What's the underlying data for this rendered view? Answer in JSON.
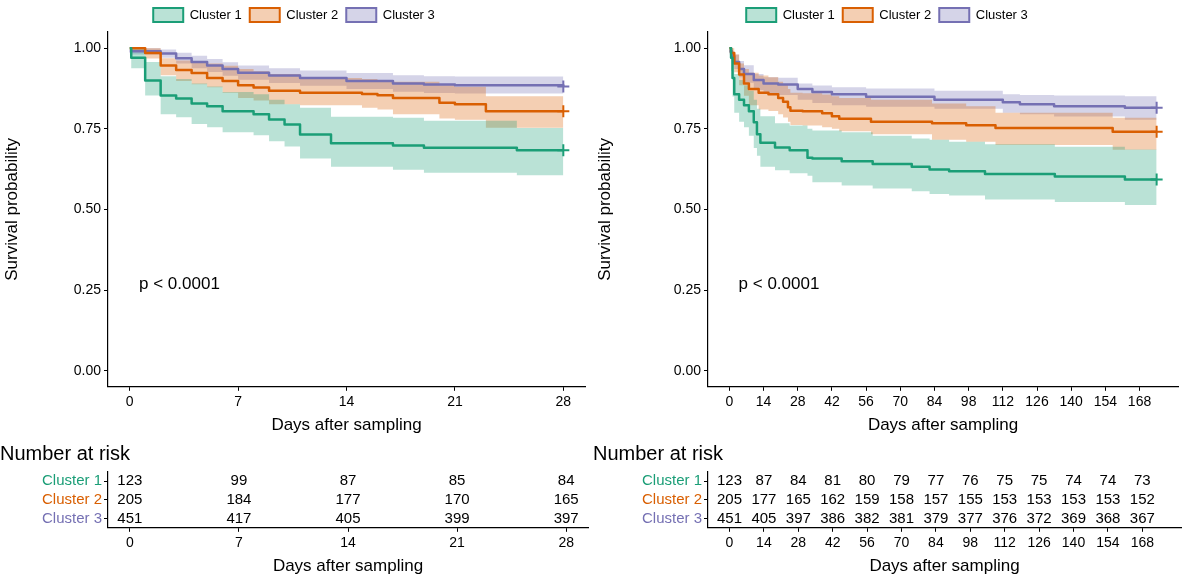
{
  "chart_data": [
    {
      "type": "step",
      "xlabel": "Days after sampling",
      "ylabel": "Survival probability",
      "xlim": [
        -1.4,
        29.4
      ],
      "xticks": [
        0,
        7,
        14,
        21,
        28
      ],
      "ylim": [
        -0.05,
        1.05
      ],
      "yticks": [
        {
          "value": 0,
          "label": "0.00"
        },
        {
          "value": 0.25,
          "label": "0.25"
        },
        {
          "value": 0.5,
          "label": "0.50"
        },
        {
          "value": 0.75,
          "label": "0.75"
        },
        {
          "value": 1,
          "label": "1.00"
        }
      ],
      "legend": "top",
      "annotations": [
        "p < 0.0001"
      ],
      "series": [
        {
          "name": "Cluster 1",
          "color": "#1b9e77",
          "x": [
            0,
            0.1,
            1,
            2,
            3,
            4,
            5,
            6,
            8,
            9,
            10,
            11,
            13,
            17,
            19,
            25,
            28
          ],
          "values": [
            1,
            0.97,
            0.9,
            0.853,
            0.844,
            0.828,
            0.82,
            0.804,
            0.795,
            0.779,
            0.763,
            0.732,
            0.705,
            0.698,
            0.691,
            0.683,
            0.683
          ],
          "lower": [
            1,
            0.938,
            0.853,
            0.795,
            0.786,
            0.765,
            0.755,
            0.739,
            0.73,
            0.711,
            0.695,
            0.658,
            0.632,
            0.623,
            0.614,
            0.606,
            0.606
          ],
          "upper": [
            1,
            1,
            0.957,
            0.913,
            0.904,
            0.89,
            0.881,
            0.864,
            0.857,
            0.84,
            0.826,
            0.815,
            0.787,
            0.784,
            0.775,
            0.752,
            0.752
          ]
        },
        {
          "name": "Cluster 2",
          "color": "#d95f02",
          "x": [
            0,
            1,
            2,
            3,
            4,
            5,
            6,
            7,
            8,
            9,
            11,
            15,
            16,
            17,
            20,
            21,
            23,
            28
          ],
          "values": [
            1,
            0.985,
            0.946,
            0.932,
            0.923,
            0.907,
            0.898,
            0.885,
            0.878,
            0.868,
            0.862,
            0.858,
            0.854,
            0.845,
            0.831,
            0.826,
            0.804,
            0.804
          ],
          "lower": [
            1,
            0.968,
            0.916,
            0.898,
            0.888,
            0.879,
            0.862,
            0.845,
            0.838,
            0.826,
            0.823,
            0.815,
            0.81,
            0.795,
            0.782,
            0.778,
            0.753,
            0.753
          ],
          "upper": [
            1,
            1,
            0.969,
            0.962,
            0.957,
            0.952,
            0.945,
            0.935,
            0.928,
            0.92,
            0.907,
            0.904,
            0.9,
            0.896,
            0.885,
            0.88,
            0.851,
            0.851
          ]
        },
        {
          "name": "Cluster 3",
          "color": "#7570b3",
          "x": [
            0,
            2,
            3,
            4,
            5,
            6,
            7,
            9,
            11,
            14,
            17,
            19,
            21,
            28
          ],
          "values": [
            0.99,
            0.983,
            0.969,
            0.957,
            0.946,
            0.935,
            0.924,
            0.915,
            0.907,
            0.898,
            0.89,
            0.887,
            0.885,
            0.881
          ],
          "lower": [
            0.98,
            0.97,
            0.952,
            0.938,
            0.926,
            0.914,
            0.902,
            0.892,
            0.883,
            0.873,
            0.865,
            0.861,
            0.859,
            0.855
          ],
          "upper": [
            1,
            0.996,
            0.986,
            0.976,
            0.966,
            0.956,
            0.946,
            0.938,
            0.931,
            0.923,
            0.916,
            0.913,
            0.912,
            0.909
          ]
        },
        {
          "type": "scatter",
          "marker": "cross",
          "color": "#1b9e77",
          "x": [
            28
          ],
          "values": [
            0.683
          ]
        },
        {
          "type": "scatter",
          "marker": "cross",
          "color": "#d95f02",
          "x": [
            28
          ],
          "values": [
            0.804
          ]
        },
        {
          "type": "scatter",
          "marker": "cross",
          "color": "#7570b3",
          "x": [
            28
          ],
          "values": [
            0.881
          ]
        }
      ]
    },
    {
      "type": "step",
      "xlabel": "Days after sampling",
      "ylabel": "Survival probability",
      "xlim": [
        -8.75,
        183.75
      ],
      "xticks": [
        0,
        14,
        28,
        42,
        56,
        70,
        84,
        98,
        112,
        126,
        140,
        154,
        168
      ],
      "ylim": [
        -0.05,
        1.05
      ],
      "yticks": [
        {
          "value": 0,
          "label": "0.00"
        },
        {
          "value": 0.25,
          "label": "0.25"
        },
        {
          "value": 0.5,
          "label": "0.50"
        },
        {
          "value": 0.75,
          "label": "0.75"
        },
        {
          "value": 1,
          "label": "1.00"
        }
      ],
      "legend": "top",
      "annotations": [
        "p < 0.0001"
      ],
      "series": [
        {
          "name": "Cluster 1",
          "color": "#1b9e77",
          "x": [
            0,
            0.7,
            1.3,
            2,
            4,
            6,
            8,
            10,
            11.3,
            12.7,
            18.7,
            24.7,
            32,
            34,
            46,
            58.7,
            74.7,
            82,
            90,
            104.7,
            133.3,
            162,
            175
          ],
          "values": [
            1,
            0.97,
            0.907,
            0.857,
            0.84,
            0.823,
            0.804,
            0.77,
            0.733,
            0.707,
            0.692,
            0.683,
            0.66,
            0.658,
            0.649,
            0.641,
            0.632,
            0.624,
            0.618,
            0.61,
            0.602,
            0.593,
            0.593
          ],
          "lower": [
            1,
            0.93,
            0.85,
            0.8,
            0.772,
            0.755,
            0.728,
            0.69,
            0.666,
            0.632,
            0.621,
            0.612,
            0.604,
            0.584,
            0.574,
            0.565,
            0.556,
            0.548,
            0.543,
            0.531,
            0.523,
            0.514,
            0.514
          ],
          "upper": [
            1,
            1,
            0.952,
            0.92,
            0.901,
            0.885,
            0.868,
            0.84,
            0.812,
            0.789,
            0.767,
            0.76,
            0.75,
            0.745,
            0.739,
            0.728,
            0.72,
            0.716,
            0.71,
            0.702,
            0.694,
            0.686,
            0.686
          ]
        },
        {
          "name": "Cluster 2",
          "color": "#d95f02",
          "x": [
            0,
            0.7,
            2,
            4,
            6,
            8,
            12,
            16,
            20,
            22,
            24,
            25,
            30,
            38,
            42,
            45,
            58,
            83,
            97,
            109,
            157,
            175
          ],
          "values": [
            1,
            0.985,
            0.952,
            0.918,
            0.89,
            0.873,
            0.862,
            0.857,
            0.845,
            0.834,
            0.817,
            0.806,
            0.804,
            0.798,
            0.789,
            0.781,
            0.772,
            0.767,
            0.761,
            0.752,
            0.741,
            0.741
          ],
          "lower": [
            1,
            0.965,
            0.925,
            0.885,
            0.852,
            0.823,
            0.81,
            0.805,
            0.795,
            0.785,
            0.772,
            0.762,
            0.76,
            0.755,
            0.75,
            0.742,
            0.733,
            0.716,
            0.71,
            0.7,
            0.685,
            0.685
          ],
          "upper": [
            1,
            1,
            0.98,
            0.952,
            0.935,
            0.924,
            0.915,
            0.91,
            0.896,
            0.888,
            0.873,
            0.862,
            0.86,
            0.856,
            0.851,
            0.845,
            0.84,
            0.828,
            0.82,
            0.8,
            0.784,
            0.784
          ]
        },
        {
          "name": "Cluster 3",
          "color": "#7570b3",
          "x": [
            0,
            1,
            2,
            4,
            6,
            10,
            14,
            20,
            28,
            34,
            42,
            56,
            84,
            112,
            119,
            133,
            162,
            175
          ],
          "values": [
            0.99,
            0.974,
            0.957,
            0.935,
            0.92,
            0.901,
            0.89,
            0.887,
            0.873,
            0.864,
            0.857,
            0.849,
            0.84,
            0.832,
            0.826,
            0.82,
            0.815,
            0.815
          ],
          "lower": [
            0.98,
            0.955,
            0.935,
            0.91,
            0.893,
            0.87,
            0.858,
            0.855,
            0.84,
            0.83,
            0.823,
            0.818,
            0.812,
            0.8,
            0.795,
            0.788,
            0.778,
            0.778
          ],
          "upper": [
            1,
            0.99,
            0.98,
            0.96,
            0.947,
            0.92,
            0.91,
            0.908,
            0.89,
            0.884,
            0.879,
            0.875,
            0.868,
            0.857,
            0.855,
            0.853,
            0.851,
            0.851
          ]
        },
        {
          "type": "scatter",
          "marker": "cross",
          "color": "#1b9e77",
          "x": [
            175
          ],
          "values": [
            0.593
          ]
        },
        {
          "type": "scatter",
          "marker": "cross",
          "color": "#d95f02",
          "x": [
            175
          ],
          "values": [
            0.741
          ]
        },
        {
          "type": "scatter",
          "marker": "cross",
          "color": "#7570b3",
          "x": [
            175
          ],
          "values": [
            0.815
          ]
        }
      ]
    },
    {
      "type": "heatmap",
      "title": "Number at risk",
      "xlabel": "Days after sampling",
      "x": [
        0,
        7,
        14,
        21,
        28
      ],
      "xlim": [
        -1.4,
        29.4
      ],
      "xticks": [
        0,
        7,
        14,
        21,
        28
      ],
      "y_categories": [
        "Cluster 1",
        "Cluster 2",
        "Cluster 3"
      ],
      "colors": [
        "#1b9e77",
        "#d95f02",
        "#7570b3"
      ],
      "data_labels": true,
      "cells": [
        [
          123,
          99,
          87,
          85,
          84
        ],
        [
          205,
          184,
          177,
          170,
          165
        ],
        [
          451,
          417,
          405,
          399,
          397
        ]
      ]
    },
    {
      "type": "heatmap",
      "title": "Number at risk",
      "xlabel": "Days after sampling",
      "x": [
        0,
        14,
        28,
        42,
        56,
        70,
        84,
        98,
        112,
        126,
        140,
        154,
        168
      ],
      "xlim": [
        -8.75,
        183.75
      ],
      "xticks": [
        0,
        14,
        28,
        42,
        56,
        70,
        84,
        98,
        112,
        126,
        140,
        154,
        168
      ],
      "y_categories": [
        "Cluster 1",
        "Cluster 2",
        "Cluster 3"
      ],
      "colors": [
        "#1b9e77",
        "#d95f02",
        "#7570b3"
      ],
      "data_labels": true,
      "cells": [
        [
          123,
          87,
          84,
          81,
          80,
          79,
          77,
          76,
          75,
          75,
          74,
          74,
          73
        ],
        [
          205,
          177,
          165,
          162,
          159,
          158,
          157,
          155,
          153,
          153,
          153,
          153,
          152
        ],
        [
          451,
          405,
          397,
          386,
          382,
          381,
          379,
          377,
          376,
          372,
          369,
          368,
          367
        ]
      ]
    }
  ]
}
